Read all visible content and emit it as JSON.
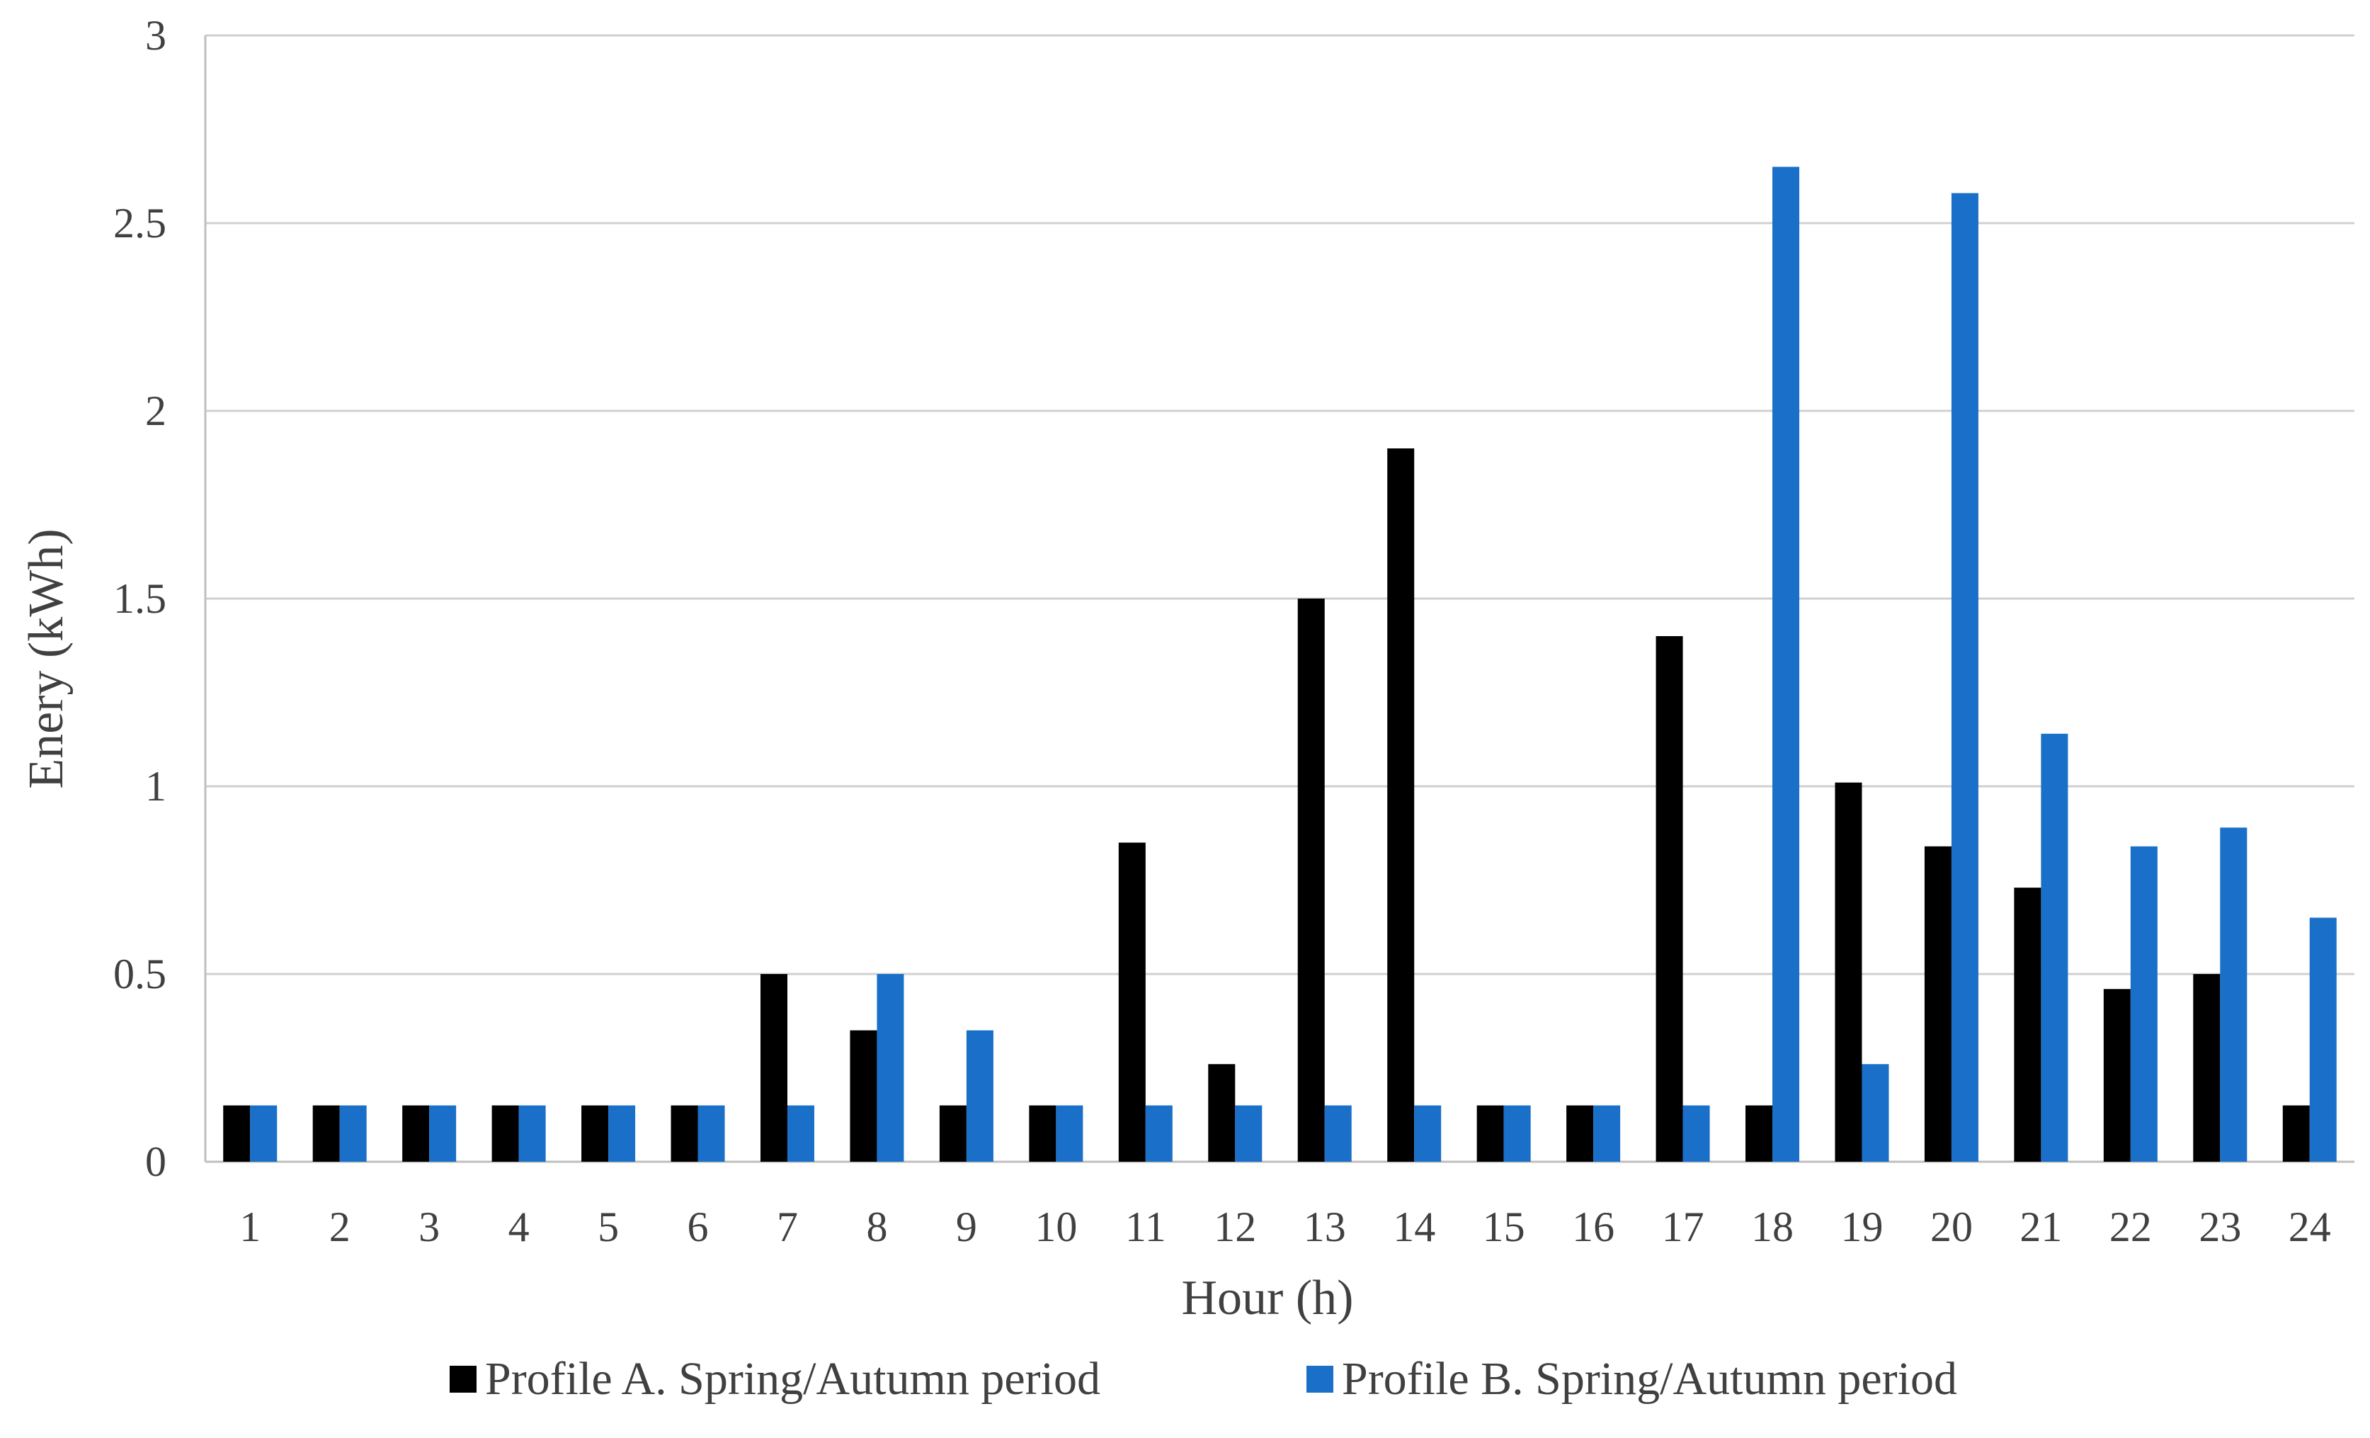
{
  "chart_data": {
    "type": "bar",
    "title": "",
    "xlabel": "Hour (h)",
    "ylabel": "Enery (kWh)",
    "ylim": [
      0,
      3
    ],
    "yticks": [
      "0",
      "0.5",
      "1",
      "1.5",
      "2",
      "2.5",
      "3"
    ],
    "grid": true,
    "legend_position": "bottom",
    "categories": [
      "1",
      "2",
      "3",
      "4",
      "5",
      "6",
      "7",
      "8",
      "9",
      "10",
      "11",
      "12",
      "13",
      "14",
      "15",
      "16",
      "17",
      "18",
      "19",
      "20",
      "21",
      "22",
      "23",
      "24"
    ],
    "series": [
      {
        "name": "Profile A. Spring/Autumn period",
        "color": "#000000",
        "values": [
          0.15,
          0.15,
          0.15,
          0.15,
          0.15,
          0.15,
          0.5,
          0.35,
          0.15,
          0.15,
          0.85,
          0.26,
          1.5,
          1.9,
          0.15,
          0.15,
          1.4,
          0.15,
          1.01,
          0.84,
          0.73,
          0.46,
          0.5,
          0.15
        ]
      },
      {
        "name": "Profile B. Spring/Autumn period",
        "color": "#1a6fc9",
        "values": [
          0.15,
          0.15,
          0.15,
          0.15,
          0.15,
          0.15,
          0.15,
          0.5,
          0.35,
          0.15,
          0.15,
          0.15,
          0.15,
          0.15,
          0.15,
          0.15,
          0.15,
          2.65,
          0.26,
          2.58,
          1.14,
          0.84,
          0.89,
          0.65
        ]
      }
    ]
  }
}
